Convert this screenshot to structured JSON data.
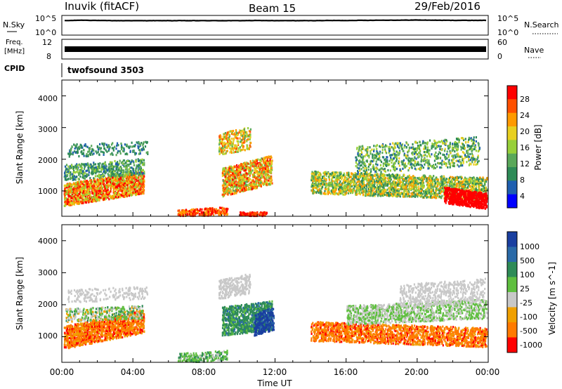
{
  "header": {
    "station": "Inuvik (fitACF)",
    "beam": "Beam 15",
    "date": "29/Feb/2016"
  },
  "chart_data": [
    {
      "type": "line",
      "panel": "noise",
      "left_label": "N.Sky",
      "right_label": "N.Search",
      "left_ticks": [
        "10^5",
        "10^0"
      ],
      "right_ticks": [
        "10^5",
        "10^0"
      ],
      "series": [
        {
          "values": [
            4.0,
            4.15,
            4.05,
            4.0,
            4.0,
            4.0,
            4.0,
            4.0,
            4.0,
            4.0,
            4.0,
            4.05,
            4.0,
            4.0,
            4.0,
            4.05,
            4.05,
            4.1,
            4.15,
            4.15,
            4.2,
            4.15,
            4.1,
            4.1,
            4.1
          ]
        }
      ]
    },
    {
      "type": "line",
      "panel": "frequency",
      "left_label": "Freq.",
      "left_unit": "[MHz]",
      "right_label": "Nave",
      "left_ticks": [
        "12",
        "8"
      ],
      "right_ticks": [
        "60",
        "0"
      ],
      "cpid_label": "CPID",
      "cpid_text": "twofsound 3503"
    },
    {
      "type": "heatmap",
      "panel": "power",
      "ylabel": "Slant Range [km]",
      "yticks": [
        "1000",
        "2000",
        "3000",
        "4000"
      ],
      "colorbar_label": "Power [dB]",
      "colorbar_ticks": [
        "4",
        "8",
        "12",
        "16",
        "20",
        "24",
        "28"
      ],
      "colorbar_colors": [
        "#0000ff",
        "#1f5fb0",
        "#2e8b57",
        "#5aa85a",
        "#98d03a",
        "#e8d020",
        "#ff9a00",
        "#ff5000",
        "#ff0000"
      ]
    },
    {
      "type": "heatmap",
      "panel": "velocity",
      "ylabel": "Slant Range [km]",
      "yticks": [
        "1000",
        "2000",
        "3000",
        "4000"
      ],
      "colorbar_label": "Velocity [m s^-1]",
      "colorbar_ticks": [
        "1000",
        "500",
        "100",
        "25",
        "-25",
        "-100",
        "-500",
        "-1000"
      ],
      "colorbar_colors": [
        "#1a3fa0",
        "#2a6aa8",
        "#2e8b57",
        "#5fbf3f",
        "#c8c8c8",
        "#f0a000",
        "#ff7a00",
        "#ff0000"
      ],
      "xticks": [
        "00:00",
        "04:00",
        "08:00",
        "12:00",
        "16:00",
        "20:00",
        "00:00"
      ],
      "xlabel": "Time UT"
    }
  ]
}
